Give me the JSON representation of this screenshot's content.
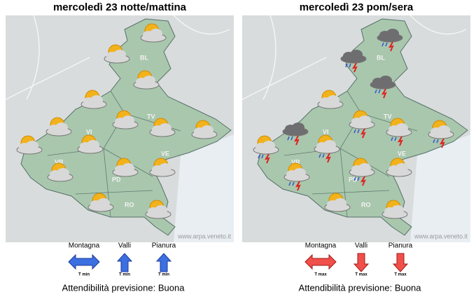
{
  "panels": [
    {
      "title": "mercoledì 23 notte/mattina",
      "provinces": [
        "BL",
        "TV",
        "VI",
        "VR",
        "PD",
        "VE",
        "RO"
      ],
      "watermark": "www.arpa.veneto.it",
      "legend": {
        "items": [
          {
            "label": "Montagna",
            "arrow_label": "T min"
          },
          {
            "label": "Valli",
            "arrow_label": "T min"
          },
          {
            "label": "Pianura",
            "arrow_label": "T min"
          }
        ]
      },
      "reliability": "Attendibilità previsione: Buona"
    },
    {
      "title": "mercoledì 23 pom/sera",
      "provinces": [
        "BL",
        "TV",
        "VI",
        "VR",
        "PD",
        "VE",
        "RO"
      ],
      "watermark": "www.arpa.veneto.it",
      "legend": {
        "items": [
          {
            "label": "Montagna",
            "arrow_label": "T max"
          },
          {
            "label": "Valli",
            "arrow_label": "T max"
          },
          {
            "label": "Pianura",
            "arrow_label": "T max"
          }
        ]
      },
      "reliability": "Attendibilità previsione: Buona"
    }
  ]
}
